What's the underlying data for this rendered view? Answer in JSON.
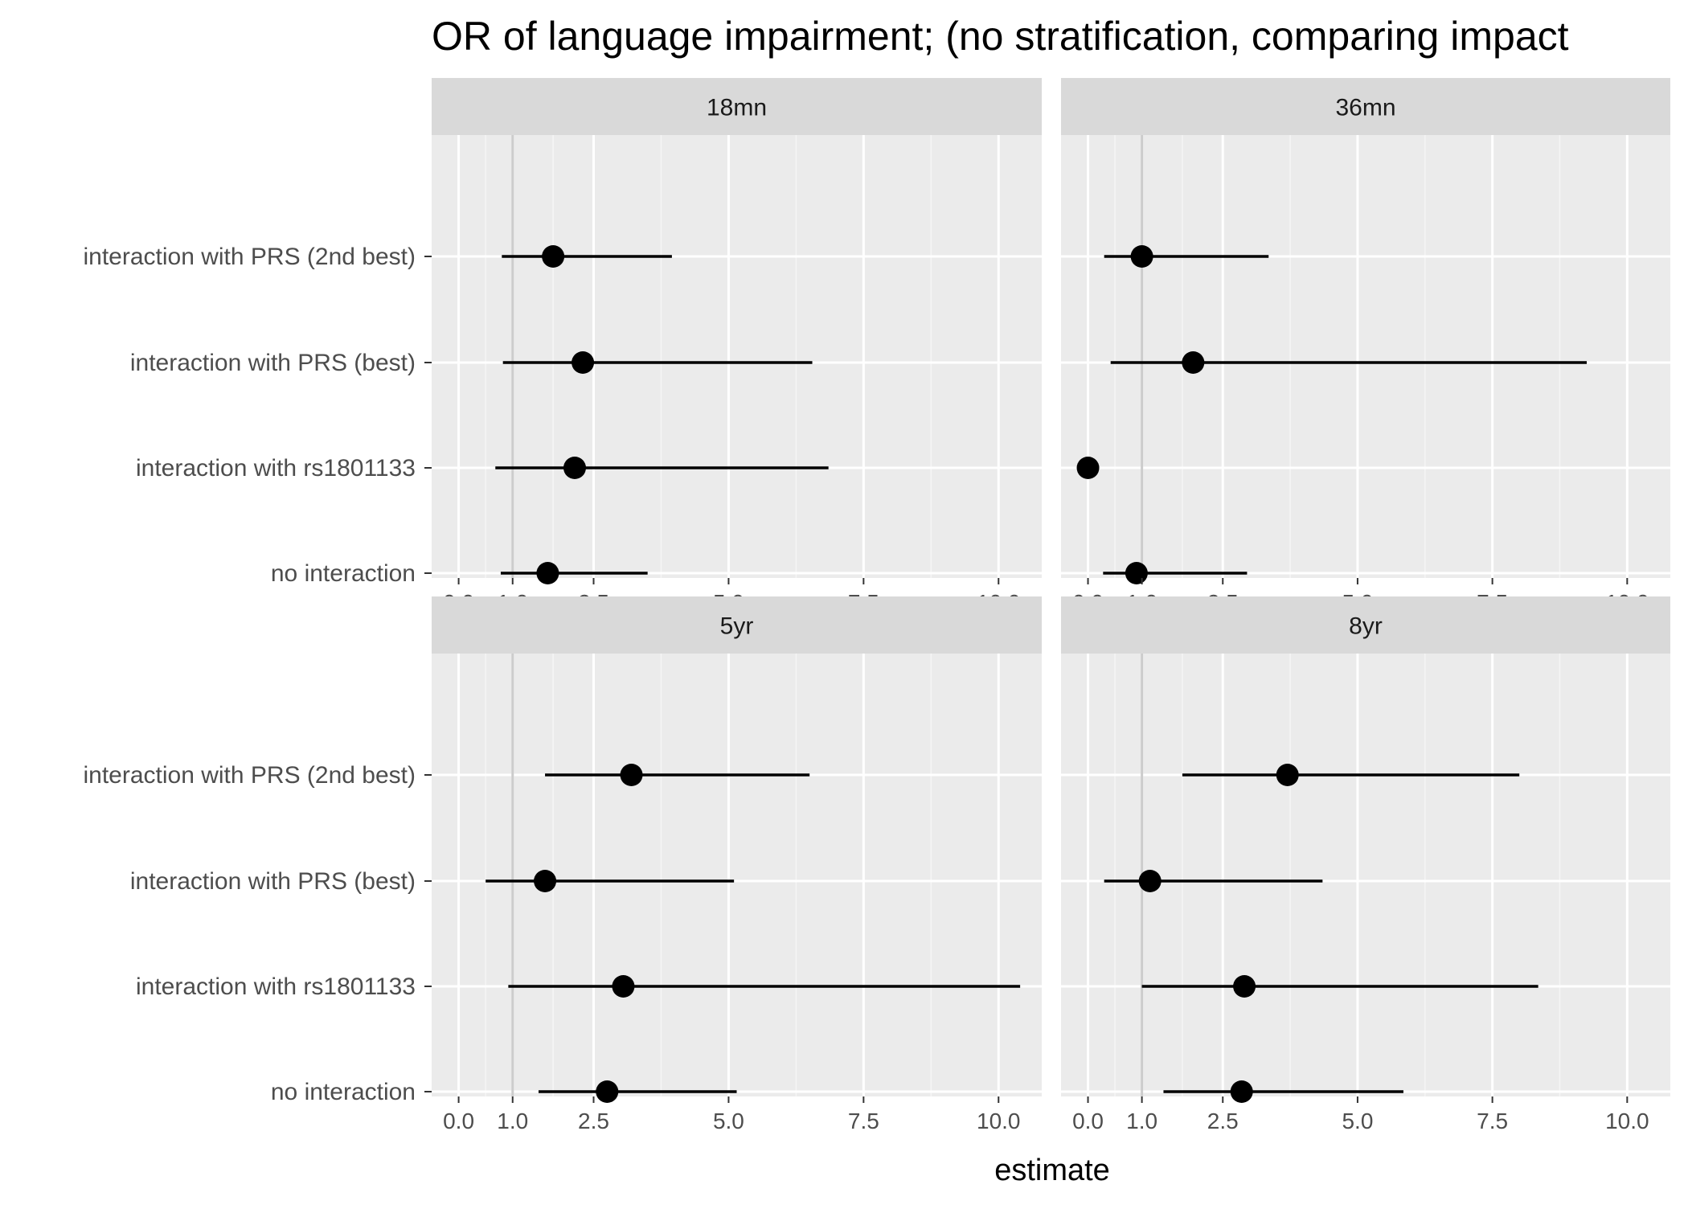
{
  "chart_data": {
    "type": "scatter",
    "subtype": "forest-plot",
    "title": "OR of language impairment; (no stratification, comparing impact",
    "xlabel": "estimate",
    "ylabel": "",
    "categories": [
      "interaction with PRS (2nd best)",
      "interaction with PRS (best)",
      "interaction with rs1801133",
      "no interaction"
    ],
    "xlim": [
      -0.5,
      10.8
    ],
    "x_ticks": [
      0,
      1,
      2.5,
      5,
      7.5,
      10
    ],
    "x_tick_labels": [
      "0.0",
      "1.0",
      "2.5",
      "5.0",
      "7.5",
      "10.0"
    ],
    "reference_line": 1,
    "grid": true,
    "facets": [
      {
        "name": "18mn",
        "points": [
          {
            "category": "interaction with PRS (2nd best)",
            "estimate": 1.75,
            "lower": 0.8,
            "upper": 3.95
          },
          {
            "category": "interaction with PRS (best)",
            "estimate": 2.3,
            "lower": 0.82,
            "upper": 6.55
          },
          {
            "category": "interaction with rs1801133",
            "estimate": 2.15,
            "lower": 0.68,
            "upper": 6.85
          },
          {
            "category": "no interaction",
            "estimate": 1.65,
            "lower": 0.78,
            "upper": 3.5
          }
        ]
      },
      {
        "name": "36mn",
        "points": [
          {
            "category": "interaction with PRS (2nd best)",
            "estimate": 1.0,
            "lower": 0.3,
            "upper": 3.35
          },
          {
            "category": "interaction with PRS (best)",
            "estimate": 1.95,
            "lower": 0.42,
            "upper": 9.25
          },
          {
            "category": "interaction with rs1801133",
            "estimate": 0.0,
            "lower": null,
            "upper": null
          },
          {
            "category": "no interaction",
            "estimate": 0.9,
            "lower": 0.28,
            "upper": 2.95
          }
        ]
      },
      {
        "name": "5yr",
        "points": [
          {
            "category": "interaction with PRS (2nd best)",
            "estimate": 3.2,
            "lower": 1.6,
            "upper": 6.5
          },
          {
            "category": "interaction with PRS (best)",
            "estimate": 1.6,
            "lower": 0.5,
            "upper": 5.1
          },
          {
            "category": "interaction with rs1801133",
            "estimate": 3.05,
            "lower": 0.92,
            "upper": 10.4
          },
          {
            "category": "no interaction",
            "estimate": 2.75,
            "lower": 1.48,
            "upper": 5.15
          }
        ]
      },
      {
        "name": "8yr",
        "points": [
          {
            "category": "interaction with PRS (2nd best)",
            "estimate": 3.7,
            "lower": 1.75,
            "upper": 8.0
          },
          {
            "category": "interaction with PRS (best)",
            "estimate": 1.15,
            "lower": 0.3,
            "upper": 4.35
          },
          {
            "category": "interaction with rs1801133",
            "estimate": 2.9,
            "lower": 1.0,
            "upper": 8.35
          },
          {
            "category": "no interaction",
            "estimate": 2.85,
            "lower": 1.4,
            "upper": 5.85
          }
        ]
      }
    ]
  }
}
